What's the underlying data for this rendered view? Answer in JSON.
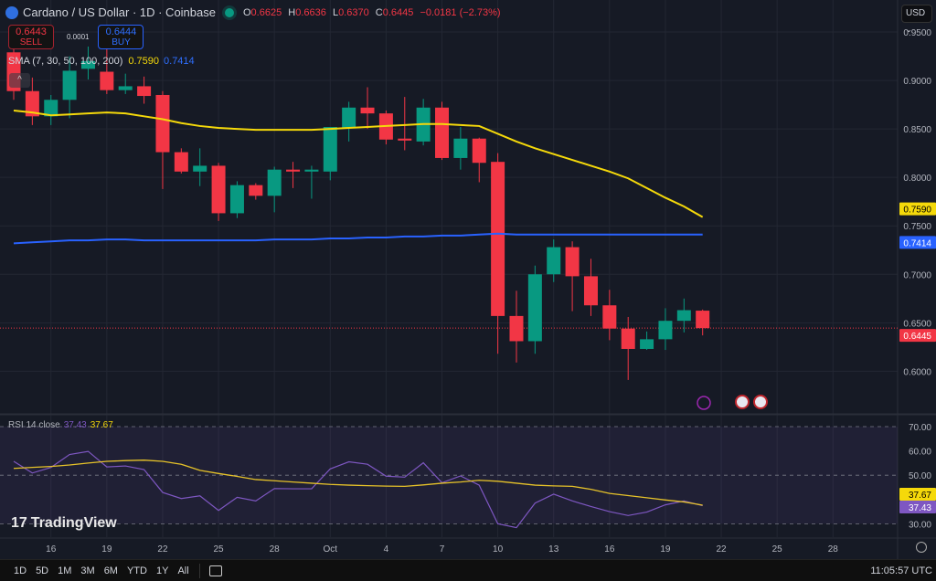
{
  "header": {
    "symbol_title": "Cardano / US Dollar · 1D · Coinbase",
    "ohlc": [
      {
        "k": "O",
        "v": "0.6625"
      },
      {
        "k": "H",
        "v": "0.6636"
      },
      {
        "k": "L",
        "v": "0.6370"
      },
      {
        "k": "C",
        "v": "0.6445"
      }
    ],
    "change": "−0.0181 (−2.73%)"
  },
  "trade": {
    "sell_price": "0.6443",
    "sell_label": "SELL",
    "spread": "0.0001",
    "buy_price": "0.6444",
    "buy_label": "BUY"
  },
  "sma_legend": {
    "label": "SMA (7, 30, 50, 100, 200)",
    "v1": "0.7590",
    "v2": "0.7414"
  },
  "currency": "USD",
  "rsi_legend": {
    "label": "RSI 14 close",
    "rsi": "37.43",
    "ma": "37.67"
  },
  "brand": "TradingView",
  "bottom": {
    "ranges": [
      "1D",
      "5D",
      "1M",
      "3M",
      "6M",
      "YTD",
      "1Y",
      "All"
    ],
    "time": "11:05:57 UTC"
  },
  "colors": {
    "up": "#089981",
    "down": "#f23645",
    "sma_yellow": "#f5d90a",
    "sma_blue": "#2962ff",
    "rsi": "#7e57c2",
    "rsi_ma": "#e6c229",
    "bg": "#161a25"
  },
  "icons": [
    "lightning-event-icon",
    "us-flag-icon",
    "us-flag-icon",
    "calendar-goto-icon",
    "chart-settings-icon"
  ],
  "chart_data": [
    {
      "type": "candlestick",
      "title": "Cardano / US Dollar · 1D · Coinbase",
      "ylim": [
        0.557,
        0.983
      ],
      "yticks": [
        "0.9500",
        "0.9000",
        "0.8500",
        "0.8000",
        "0.7500",
        "0.7000",
        "0.6500",
        "0.6000"
      ],
      "xtick_labels": [
        {
          "d": 2,
          "t": "16"
        },
        {
          "d": 5,
          "t": "19"
        },
        {
          "d": 8,
          "t": "22"
        },
        {
          "d": 11,
          "t": "25"
        },
        {
          "d": 14,
          "t": "28"
        },
        {
          "d": 17,
          "t": "Oct"
        },
        {
          "d": 20,
          "t": "4"
        },
        {
          "d": 23,
          "t": "7"
        },
        {
          "d": 26,
          "t": "10"
        },
        {
          "d": 29,
          "t": "13"
        },
        {
          "d": 32,
          "t": "16"
        },
        {
          "d": 35,
          "t": "19"
        },
        {
          "d": 38,
          "t": "22"
        },
        {
          "d": 41,
          "t": "25"
        },
        {
          "d": 44,
          "t": "28"
        }
      ],
      "dates": [
        "Sep 14",
        "Sep 15",
        "Sep 16",
        "Sep 17",
        "Sep 18",
        "Sep 19",
        "Sep 20",
        "Sep 21",
        "Sep 22",
        "Sep 23",
        "Sep 24",
        "Sep 25",
        "Sep 26",
        "Sep 27",
        "Sep 28",
        "Sep 29",
        "Sep 30",
        "Oct 1",
        "Oct 2",
        "Oct 3",
        "Oct 4",
        "Oct 5",
        "Oct 6",
        "Oct 7",
        "Oct 8",
        "Oct 9",
        "Oct 10",
        "Oct 11",
        "Oct 12",
        "Oct 13",
        "Oct 14",
        "Oct 15",
        "Oct 16",
        "Oct 17",
        "Oct 18",
        "Oct 19",
        "Oct 20",
        "Oct 21"
      ],
      "ohlc": [
        [
          0.929,
          0.935,
          0.88,
          0.889
        ],
        [
          0.889,
          0.903,
          0.854,
          0.863
        ],
        [
          0.863,
          0.885,
          0.854,
          0.88
        ],
        [
          0.88,
          0.925,
          0.861,
          0.91
        ],
        [
          0.912,
          0.935,
          0.901,
          0.92
        ],
        [
          0.909,
          0.94,
          0.886,
          0.89
        ],
        [
          0.89,
          0.907,
          0.886,
          0.894
        ],
        [
          0.894,
          0.904,
          0.876,
          0.884
        ],
        [
          0.885,
          0.889,
          0.788,
          0.826
        ],
        [
          0.826,
          0.83,
          0.804,
          0.806
        ],
        [
          0.806,
          0.83,
          0.791,
          0.812
        ],
        [
          0.812,
          0.815,
          0.755,
          0.763
        ],
        [
          0.763,
          0.796,
          0.758,
          0.792
        ],
        [
          0.792,
          0.794,
          0.777,
          0.781
        ],
        [
          0.781,
          0.811,
          0.764,
          0.808
        ],
        [
          0.808,
          0.816,
          0.789,
          0.806
        ],
        [
          0.806,
          0.812,
          0.778,
          0.808
        ],
        [
          0.806,
          0.852,
          0.797,
          0.852
        ],
        [
          0.851,
          0.878,
          0.837,
          0.872
        ],
        [
          0.872,
          0.893,
          0.85,
          0.866
        ],
        [
          0.866,
          0.869,
          0.834,
          0.839
        ],
        [
          0.84,
          0.883,
          0.828,
          0.838
        ],
        [
          0.837,
          0.881,
          0.833,
          0.872
        ],
        [
          0.872,
          0.878,
          0.818,
          0.82
        ],
        [
          0.82,
          0.852,
          0.808,
          0.84
        ],
        [
          0.84,
          0.841,
          0.795,
          0.815
        ],
        [
          0.816,
          0.825,
          0.618,
          0.657
        ],
        [
          0.657,
          0.683,
          0.609,
          0.631
        ],
        [
          0.631,
          0.709,
          0.618,
          0.7
        ],
        [
          0.7,
          0.736,
          0.692,
          0.728
        ],
        [
          0.728,
          0.734,
          0.662,
          0.698
        ],
        [
          0.698,
          0.716,
          0.657,
          0.668
        ],
        [
          0.668,
          0.684,
          0.632,
          0.644
        ],
        [
          0.644,
          0.656,
          0.591,
          0.623
        ],
        [
          0.623,
          0.641,
          0.622,
          0.633
        ],
        [
          0.633,
          0.665,
          0.622,
          0.652
        ],
        [
          0.652,
          0.675,
          0.64,
          0.663
        ],
        [
          0.6625,
          0.6636,
          0.637,
          0.6445
        ]
      ],
      "series": [
        {
          "name": "SMA",
          "color": "#f5d90a",
          "values": [
            0.869,
            0.867,
            0.864,
            0.865,
            0.866,
            0.867,
            0.866,
            0.863,
            0.86,
            0.856,
            0.853,
            0.851,
            0.85,
            0.849,
            0.849,
            0.849,
            0.849,
            0.85,
            0.851,
            0.852,
            0.853,
            0.854,
            0.855,
            0.855,
            0.854,
            0.853,
            0.845,
            0.837,
            0.83,
            0.824,
            0.818,
            0.812,
            0.806,
            0.799,
            0.789,
            0.779,
            0.77,
            0.759
          ]
        },
        {
          "name": "SMA",
          "color": "#2962ff",
          "values": [
            0.732,
            0.733,
            0.734,
            0.735,
            0.735,
            0.736,
            0.736,
            0.735,
            0.735,
            0.735,
            0.735,
            0.735,
            0.735,
            0.735,
            0.736,
            0.736,
            0.736,
            0.737,
            0.737,
            0.738,
            0.738,
            0.739,
            0.739,
            0.74,
            0.74,
            0.741,
            0.742,
            0.741,
            0.741,
            0.741,
            0.741,
            0.741,
            0.741,
            0.741,
            0.741,
            0.741,
            0.741,
            0.741
          ]
        }
      ],
      "last_price": 0.6445,
      "price_labels": [
        {
          "t": "0.7590",
          "v": 0.759,
          "c": "#f5d90a"
        },
        {
          "t": "0.7414",
          "v": 0.7414,
          "c": "#2962ff"
        },
        {
          "t": "0.6445",
          "v": 0.6445,
          "c": "#f23645"
        }
      ]
    },
    {
      "type": "line",
      "title": "RSI 14 close",
      "ylim": [
        24.5,
        74.5
      ],
      "yticks": [
        "70.00",
        "60.00",
        "50.00",
        "30.00"
      ],
      "bands": [
        30,
        50,
        70
      ],
      "series": [
        {
          "name": "RSI",
          "color": "#7e57c2",
          "values": [
            55.7,
            50.9,
            53.2,
            58.5,
            59.8,
            53.4,
            53.8,
            52.3,
            42.9,
            40.4,
            41.5,
            35.5,
            40.9,
            39.4,
            44.5,
            44.4,
            44.4,
            52.6,
            55.5,
            54.5,
            49.6,
            49.2,
            55.1,
            46.9,
            49.7,
            45.9,
            30.0,
            28.4,
            38.5,
            42.2,
            39.4,
            37.1,
            35.0,
            33.4,
            34.8,
            37.8,
            39.4,
            37.43
          ]
        },
        {
          "name": "RSI MA",
          "color": "#e6c229",
          "values": [
            52.8,
            53.2,
            53.6,
            54.2,
            55.0,
            55.7,
            56.0,
            56.2,
            55.7,
            54.5,
            52.0,
            50.7,
            49.5,
            48.2,
            47.7,
            47.2,
            46.7,
            46.2,
            45.9,
            45.7,
            45.5,
            45.4,
            46.0,
            46.7,
            47.2,
            47.9,
            47.5,
            46.7,
            45.9,
            45.6,
            45.4,
            44.2,
            42.5,
            41.6,
            40.7,
            39.8,
            39.0,
            37.67
          ]
        }
      ],
      "price_labels": [
        {
          "t": "37.67",
          "v": 37.67,
          "c": "#f5d90a"
        },
        {
          "t": "37.43",
          "v": 37.43,
          "c": "#7e57c2"
        }
      ]
    }
  ]
}
